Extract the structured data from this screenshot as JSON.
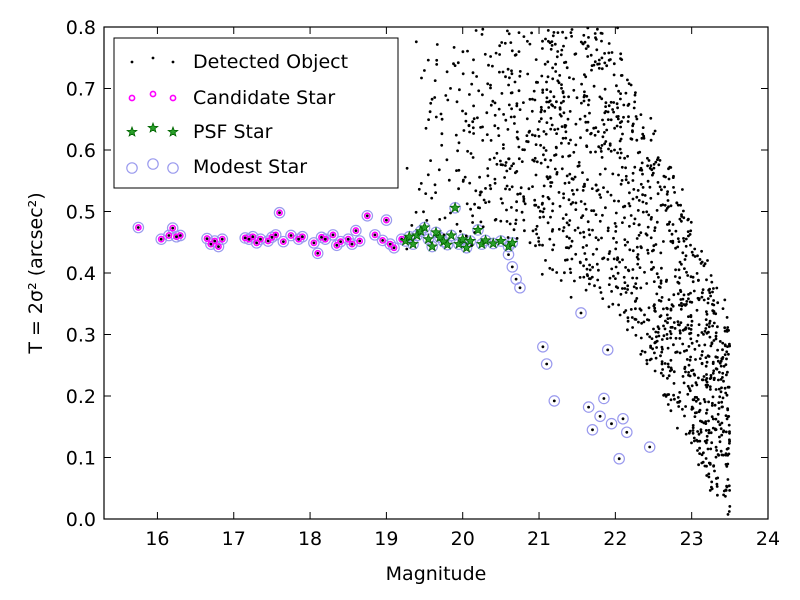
{
  "chart_data": {
    "type": "scatter",
    "xlabel": "Magnitude",
    "ylabel": "T = 2σ² (arcsec²)",
    "xlim": [
      15.3,
      24
    ],
    "ylim": [
      0.0,
      0.8
    ],
    "xticks": [
      16,
      17,
      18,
      19,
      20,
      21,
      22,
      23,
      24
    ],
    "yticks": [
      "0.0",
      "0.1",
      "0.2",
      "0.3",
      "0.4",
      "0.5",
      "0.6",
      "0.7",
      "0.8"
    ],
    "legend_position": "top-left",
    "grid": false,
    "colors": {
      "detected": "#000000",
      "candidate": "#ff00ff",
      "psf_fill": "#2aa02a",
      "psf_edge": "#006400",
      "modest": "#9a9aee"
    },
    "series": [
      {
        "name": "Detected Object",
        "marker": "dot"
      },
      {
        "name": "Candidate Star",
        "marker": "small-magenta-circle"
      },
      {
        "name": "PSF Star",
        "marker": "green-star"
      },
      {
        "name": "Modest Star",
        "marker": "open-lavender-circle"
      }
    ],
    "stellar_locus": [
      [
        15.75,
        0.474
      ],
      [
        16.05,
        0.455
      ],
      [
        16.15,
        0.461
      ],
      [
        16.2,
        0.473
      ],
      [
        16.25,
        0.459
      ],
      [
        16.3,
        0.461
      ],
      [
        16.65,
        0.456
      ],
      [
        16.7,
        0.447
      ],
      [
        16.75,
        0.452
      ],
      [
        16.8,
        0.443
      ],
      [
        16.85,
        0.455
      ],
      [
        17.15,
        0.457
      ],
      [
        17.2,
        0.455
      ],
      [
        17.25,
        0.459
      ],
      [
        17.3,
        0.449
      ],
      [
        17.35,
        0.455
      ],
      [
        17.45,
        0.452
      ],
      [
        17.5,
        0.458
      ],
      [
        17.55,
        0.462
      ],
      [
        17.6,
        0.498
      ],
      [
        17.65,
        0.451
      ],
      [
        17.75,
        0.461
      ],
      [
        17.85,
        0.455
      ],
      [
        17.9,
        0.459
      ],
      [
        18.05,
        0.449
      ],
      [
        18.1,
        0.432
      ],
      [
        18.15,
        0.458
      ],
      [
        18.2,
        0.455
      ],
      [
        18.3,
        0.462
      ],
      [
        18.35,
        0.445
      ],
      [
        18.4,
        0.451
      ],
      [
        18.5,
        0.455
      ],
      [
        18.55,
        0.447
      ],
      [
        18.6,
        0.469
      ],
      [
        18.65,
        0.452
      ],
      [
        18.75,
        0.493
      ],
      [
        18.85,
        0.462
      ],
      [
        18.95,
        0.453
      ],
      [
        19.0,
        0.486
      ],
      [
        19.05,
        0.447
      ],
      [
        19.1,
        0.441
      ],
      [
        19.2,
        0.455
      ]
    ],
    "psf_locus": [
      [
        19.25,
        0.452
      ],
      [
        19.3,
        0.459
      ],
      [
        19.35,
        0.447
      ],
      [
        19.4,
        0.461
      ],
      [
        19.45,
        0.468
      ],
      [
        19.5,
        0.474
      ],
      [
        19.55,
        0.455
      ],
      [
        19.6,
        0.443
      ],
      [
        19.65,
        0.466
      ],
      [
        19.7,
        0.458
      ],
      [
        19.75,
        0.451
      ],
      [
        19.8,
        0.446
      ],
      [
        19.85,
        0.461
      ],
      [
        19.9,
        0.506
      ],
      [
        19.95,
        0.447
      ],
      [
        20.0,
        0.455
      ],
      [
        20.05,
        0.441
      ],
      [
        20.1,
        0.452
      ],
      [
        20.2,
        0.47
      ],
      [
        20.25,
        0.447
      ],
      [
        20.3,
        0.453
      ],
      [
        20.4,
        0.448
      ],
      [
        20.5,
        0.452
      ],
      [
        20.6,
        0.443
      ],
      [
        20.65,
        0.449
      ]
    ],
    "modest_extra": [
      [
        20.6,
        0.43
      ],
      [
        20.65,
        0.41
      ],
      [
        20.7,
        0.39
      ],
      [
        20.75,
        0.376
      ],
      [
        21.05,
        0.28
      ],
      [
        21.1,
        0.252
      ],
      [
        21.2,
        0.192
      ],
      [
        21.55,
        0.335
      ],
      [
        21.65,
        0.182
      ],
      [
        21.7,
        0.145
      ],
      [
        21.8,
        0.167
      ],
      [
        21.85,
        0.196
      ],
      [
        21.9,
        0.275
      ],
      [
        21.95,
        0.155
      ],
      [
        22.05,
        0.098
      ],
      [
        22.1,
        0.163
      ],
      [
        22.15,
        0.141
      ],
      [
        22.45,
        0.117
      ]
    ]
  }
}
